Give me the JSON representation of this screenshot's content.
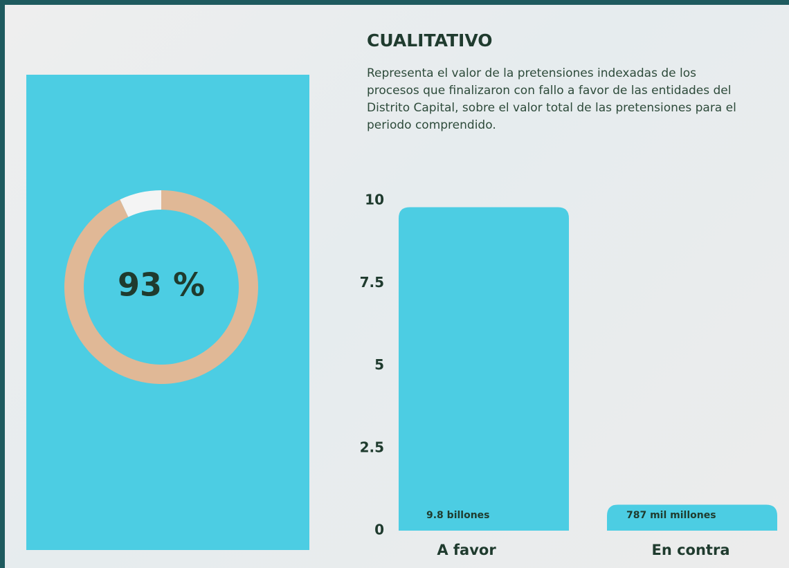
{
  "chart_data": [
    {
      "type": "donut",
      "values": [
        93,
        7
      ],
      "value_labels": [
        "93 %",
        null
      ],
      "colors": [
        "#e0b896",
        "#f4f4f4"
      ]
    },
    {
      "type": "bar",
      "title": "CUALITATIVO",
      "subtitle": "Representa el valor de la pretensiones indexadas de los procesos que finalizaron con fallo a favor de las entidades del Distrito Capital, sobre el valor total de las pretensiones para el periodo comprendido.",
      "categories": [
        "A favor",
        "En contra"
      ],
      "values": [
        9.8,
        0.787
      ],
      "value_labels": [
        "9.8 billones",
        "787 mil millones"
      ],
      "color": "#4ccde3",
      "ylim": [
        0,
        10
      ],
      "yticks": [
        0,
        2.5,
        5,
        7.5,
        10
      ],
      "grid": false
    }
  ]
}
